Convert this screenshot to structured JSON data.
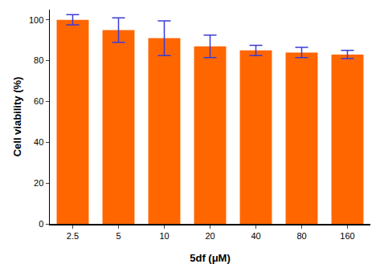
{
  "chart_data": {
    "type": "bar",
    "x_label": "5df (μM)",
    "y_label": "Cell viability (%)",
    "categories": [
      "2.5",
      "5",
      "10",
      "20",
      "40",
      "80",
      "160"
    ],
    "values": [
      100,
      95,
      91,
      87,
      85,
      84,
      83
    ],
    "errors": [
      2.5,
      6,
      8.5,
      5.5,
      2.5,
      2.5,
      2
    ],
    "color": "#ff6600",
    "ylim": [
      0,
      105
    ],
    "yticks": [
      0,
      20,
      40,
      60,
      80,
      100
    ],
    "grid": false
  }
}
